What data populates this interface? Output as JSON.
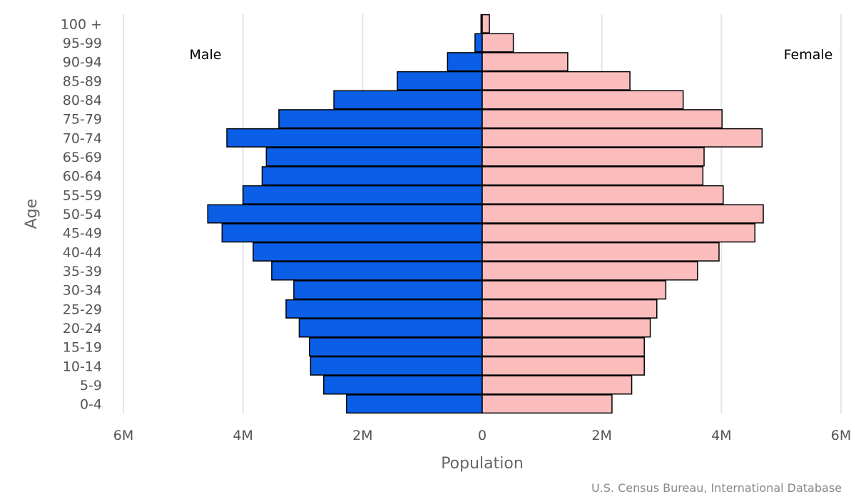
{
  "chart_data": {
    "type": "bar",
    "subtype": "population-pyramid",
    "orientation": "horizontal",
    "categories": [
      "100 +",
      "95-99",
      "90-94",
      "85-89",
      "80-84",
      "75-79",
      "70-74",
      "65-69",
      "60-64",
      "55-59",
      "50-54",
      "45-49",
      "40-44",
      "35-39",
      "30-34",
      "25-29",
      "20-24",
      "15-19",
      "10-14",
      "5-9",
      "0-4"
    ],
    "series": [
      {
        "name": "Male",
        "color": "#0b5ee6",
        "values": [
          0.02,
          0.12,
          0.58,
          1.42,
          2.48,
          3.4,
          4.27,
          3.61,
          3.68,
          4.0,
          4.59,
          4.35,
          3.83,
          3.52,
          3.15,
          3.28,
          3.06,
          2.89,
          2.87,
          2.65,
          2.27
        ]
      },
      {
        "name": "Female",
        "color": "#fbbcbc",
        "values": [
          0.12,
          0.52,
          1.43,
          2.47,
          3.36,
          4.01,
          4.68,
          3.71,
          3.69,
          4.03,
          4.7,
          4.56,
          3.96,
          3.6,
          3.07,
          2.92,
          2.81,
          2.71,
          2.71,
          2.5,
          2.17
        ]
      }
    ],
    "value_unit": "M",
    "xlim": [
      -6,
      6
    ],
    "x_ticks": [
      {
        "value": -6,
        "label": "6M"
      },
      {
        "value": -4,
        "label": "4M"
      },
      {
        "value": -2,
        "label": "2M"
      },
      {
        "value": 0,
        "label": "0"
      },
      {
        "value": 2,
        "label": "2M"
      },
      {
        "value": 4,
        "label": "4M"
      },
      {
        "value": 6,
        "label": "6M"
      }
    ],
    "xlabel": "Population",
    "ylabel": "Age",
    "grid": "vertical",
    "legend": "none"
  },
  "annotations": {
    "male_label": "Male",
    "female_label": "Female"
  },
  "credit": "U.S. Census Bureau, International Database"
}
